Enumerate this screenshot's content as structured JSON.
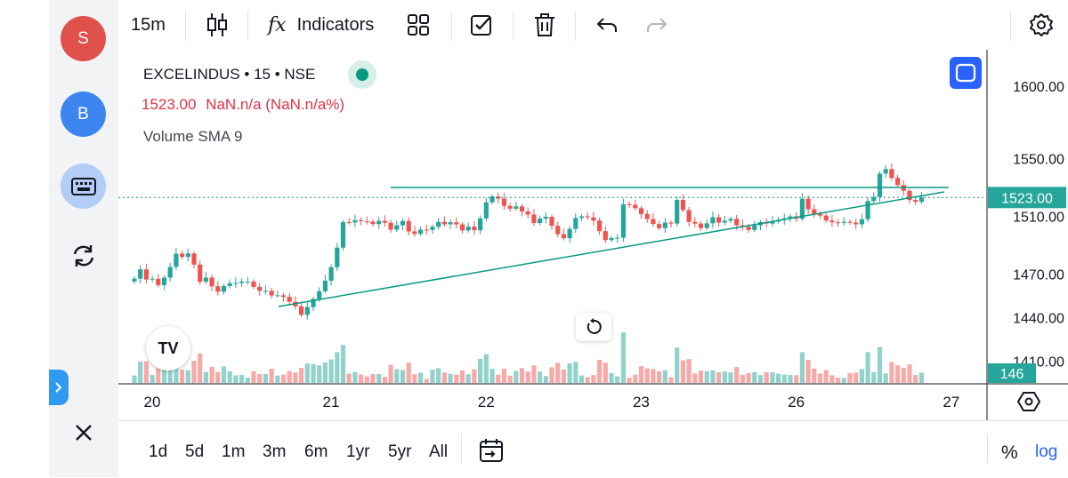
{
  "sidebar": {
    "avatars": [
      {
        "label": "S",
        "color": "#e0514b"
      },
      {
        "label": "B",
        "color": "#3d86f0"
      }
    ],
    "icons": [
      "keyboard-icon",
      "sync-icon",
      "close-icon"
    ],
    "expand_icon": "chevron-right-icon"
  },
  "toolbar": {
    "interval": "15m",
    "indicators_label": "Indicators",
    "indicators_symbol": "fx",
    "icons": [
      "candles-icon",
      "indicators-icon",
      "layout-icon",
      "checkbox-icon",
      "trash-icon",
      "undo-icon",
      "redo-icon",
      "settings-icon"
    ]
  },
  "legend": {
    "symbol": "EXCELINDUS",
    "dot1": "•",
    "interval": "15",
    "dot2": "•",
    "exchange": "NSE",
    "price": "1523.00",
    "change": "NaN.n/a (NaN.n/a%)",
    "indicator": "Volume SMA 9",
    "price_color": "#e0314a",
    "status_color": "#089981"
  },
  "logo_text": "TV",
  "chart_data": {
    "type": "candlestick",
    "price_axis": {
      "ticks": [
        1600.0,
        1550.0,
        1510.0,
        1470.0,
        1440.0,
        1410.0
      ],
      "range": [
        1395,
        1625
      ]
    },
    "time_axis": {
      "ticks": [
        "20",
        "21",
        "22",
        "23",
        "26",
        "27"
      ]
    },
    "last_price_label": "1523.00",
    "last_volume_label": "146",
    "colors": {
      "up": "#26a69a",
      "down": "#ef5350",
      "line": "#089981",
      "axis_label_bg": "#26a69a"
    },
    "close": [
      1467.0,
      1473.4,
      1466.4,
      1466.9,
      1462.5,
      1467.7,
      1475.1,
      1484.2,
      1482.0,
      1484.4,
      1476.7,
      1464.8,
      1467.7,
      1461.7,
      1458.0,
      1461.9,
      1463.8,
      1464.0,
      1465.0,
      1465.0,
      1461.3,
      1458.6,
      1458.6,
      1455.4,
      1455.5,
      1454.4,
      1451.0,
      1447.9,
      1442.0,
      1447.4,
      1453.0,
      1458.3,
      1465.6,
      1474.9,
      1488.4,
      1506.0,
      1505.8,
      1507.3,
      1506.6,
      1506.4,
      1504.6,
      1506.9,
      1505.6,
      1500.8,
      1503.8,
      1506.8,
      1499.6,
      1497.9,
      1500.8,
      1500.6,
      1502.8,
      1506.2,
      1504.5,
      1505.9,
      1504.4,
      1500.3,
      1502.9,
      1500.4,
      1508.6,
      1519.7,
      1523.7,
      1522.2,
      1517.2,
      1515.3,
      1516.9,
      1513.4,
      1511.2,
      1505.4,
      1508.4,
      1509.7,
      1503.5,
      1497.7,
      1494.9,
      1501.3,
      1508.9,
      1510.0,
      1509.3,
      1507.1,
      1499.8,
      1493.6,
      1495.0,
      1495.2,
      1518.3,
      1518.0,
      1515.6,
      1511.6,
      1508.2,
      1504.7,
      1501.9,
      1505.7,
      1505.0,
      1521.3,
      1514.3,
      1506.2,
      1505.0,
      1501.9,
      1505.2,
      1509.4,
      1505.7,
      1507.0,
      1508.3,
      1503.8,
      1502.8,
      1500.6,
      1503.8,
      1506.0,
      1505.0,
      1506.4,
      1507.5,
      1508.6,
      1510.0,
      1508.3,
      1522.2,
      1514.9,
      1511.7,
      1510.5,
      1507.1,
      1505.9,
      1505.5,
      1506.2,
      1505.7,
      1504.5,
      1508.0,
      1520.6,
      1523.4,
      1539.5,
      1542.6,
      1536.5,
      1531.6,
      1527.6,
      1521.3,
      1520.0,
      1523.0
    ]
  }
}
